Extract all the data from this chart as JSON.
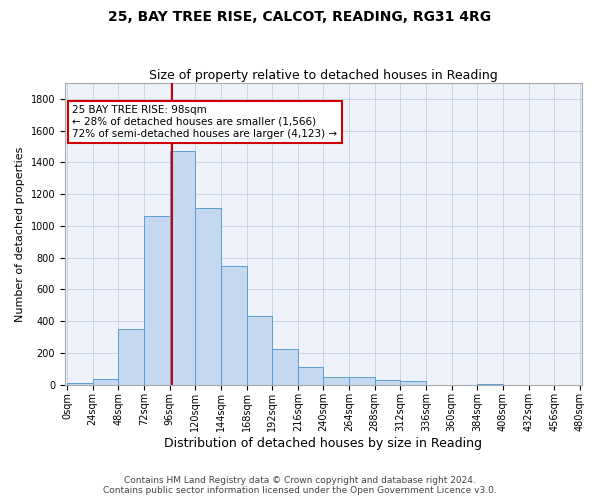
{
  "title1": "25, BAY TREE RISE, CALCOT, READING, RG31 4RG",
  "title2": "Size of property relative to detached houses in Reading",
  "xlabel": "Distribution of detached houses by size in Reading",
  "ylabel": "Number of detached properties",
  "bin_edges": [
    0,
    24,
    48,
    72,
    96,
    120,
    144,
    168,
    192,
    216,
    240,
    264,
    288,
    312,
    336,
    360,
    384,
    408,
    432,
    456,
    480
  ],
  "bar_heights": [
    10,
    35,
    350,
    1060,
    1470,
    1115,
    750,
    435,
    225,
    110,
    50,
    45,
    30,
    20,
    0,
    0,
    5,
    0,
    0,
    0
  ],
  "bar_color": "#c5d8f0",
  "bar_edge_color": "#5a9fd4",
  "vline_x": 98,
  "vline_color": "#cc0000",
  "annotation_line1": "25 BAY TREE RISE: 98sqm",
  "annotation_line2": "← 28% of detached houses are smaller (1,566)",
  "annotation_line3": "72% of semi-detached houses are larger (4,123) →",
  "annotation_box_color": "#cc0000",
  "annotation_box_facecolor": "white",
  "ylim": [
    0,
    1900
  ],
  "yticks": [
    0,
    200,
    400,
    600,
    800,
    1000,
    1200,
    1400,
    1600,
    1800
  ],
  "grid_color": "#c8cfe0",
  "background_color": "#eef2fb",
  "footer_line1": "Contains HM Land Registry data © Crown copyright and database right 2024.",
  "footer_line2": "Contains public sector information licensed under the Open Government Licence v3.0.",
  "title1_fontsize": 10,
  "title2_fontsize": 9,
  "xlabel_fontsize": 9,
  "ylabel_fontsize": 8,
  "tick_fontsize": 7,
  "annotation_fontsize": 7.5,
  "footer_fontsize": 6.5
}
